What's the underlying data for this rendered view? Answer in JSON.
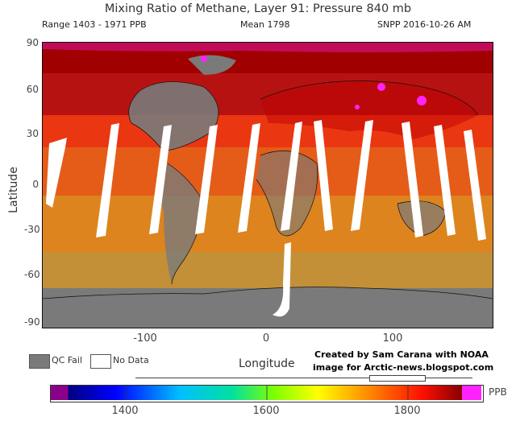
{
  "header": {
    "title": "Mixing Ratio of Methane, Layer 91: Pressure 840 mb",
    "range": "Range 1403 - 1971 PPB",
    "mean": "Mean 1798",
    "satellite_date": "SNPP 2016-10-26 AM"
  },
  "axes": {
    "ylabel": "Latitude",
    "xlabel": "Longitude",
    "lat_ticks": [
      "90",
      "60",
      "30",
      "0",
      "-30",
      "-60",
      "-90"
    ],
    "lon_ticks": [
      "-100",
      "0",
      "100"
    ]
  },
  "legend": {
    "qc_fail": "QC Fail",
    "no_data": "No Data",
    "qc_fail_color": "#7a7a7a",
    "no_data_color": "#ffffff"
  },
  "credit": {
    "line1": "Created by Sam Carana with NOAA",
    "line2": "image for Arctic-news.blogspot.com"
  },
  "colorbar": {
    "unit": "PPB",
    "ticks": [
      "1400",
      "1600",
      "1800"
    ],
    "low_color": "#8b008b",
    "high_color": "#ff22ff"
  },
  "map_colors": {
    "qc_fail": "#7a7a7a",
    "low_ppb": "#ff9900",
    "mid_ppb": "#ff4400",
    "high_ppb": "#dd0000",
    "very_high_ppb": "#a00000",
    "saturated": "#ff22ff",
    "coastline": "#111111"
  }
}
